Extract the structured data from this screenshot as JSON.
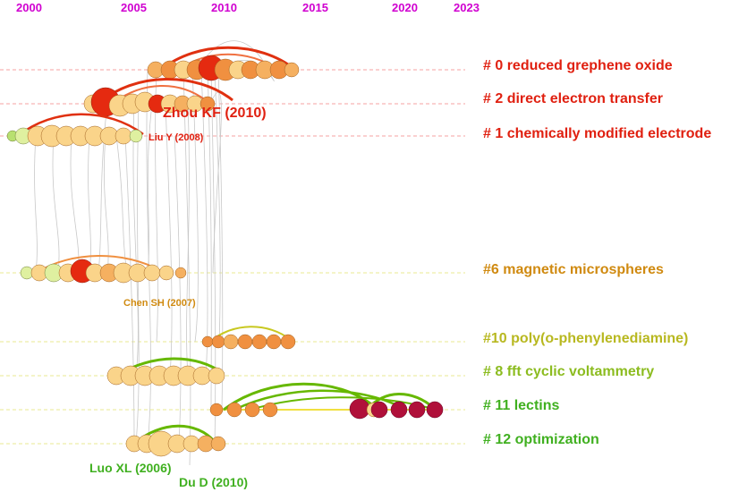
{
  "years": [
    "2000",
    "2005",
    "2010",
    "2015",
    "2020",
    "2023"
  ],
  "clusters": [
    {
      "id": "c0",
      "label": "# 0 reduced grephene oxide",
      "color": "#e02010"
    },
    {
      "id": "c2",
      "label": "# 2 direct electron transfer",
      "color": "#e02010"
    },
    {
      "id": "c1",
      "label": "# 1 chemically modified electrode",
      "color": "#e02010"
    },
    {
      "id": "c6",
      "label": "#6 magnetic microspheres",
      "color": "#d08a10"
    },
    {
      "id": "c10",
      "label": "#10 poly(o-phenylenediamine)",
      "color": "#b8b820"
    },
    {
      "id": "c8",
      "label": "# 8 fft cyclic voltammetry",
      "color": "#8cbc20"
    },
    {
      "id": "c11",
      "label": "# 11 lectins",
      "color": "#40b020"
    },
    {
      "id": "c12",
      "label": "# 12 optimization",
      "color": "#40b020"
    }
  ],
  "authors": [
    {
      "id": "zhou",
      "label": "Zhou KF (2010)",
      "color": "#e02010"
    },
    {
      "id": "liu",
      "label": "Liu Y (2008)",
      "color": "#e02010"
    },
    {
      "id": "chen",
      "label": "Chen SH (2007)",
      "color": "#d08a10"
    },
    {
      "id": "luo",
      "label": "Luo XL (2006)",
      "color": "#40b020"
    },
    {
      "id": "du",
      "label": "Du D (2010)",
      "color": "#40b020"
    }
  ],
  "colors": {
    "year_text": "#d000d0",
    "row_line_red": "#f08080",
    "row_line_yellow": "#e0e060",
    "node_light": "#fad48a",
    "node_orange": "#f09040",
    "node_red": "#e52a10",
    "node_pale_green": "#dff0a0",
    "node_crimson": "#b0103a",
    "link_gray": "#c8c8c8",
    "arc_green": "#66b800",
    "arc_red": "#e03010"
  }
}
